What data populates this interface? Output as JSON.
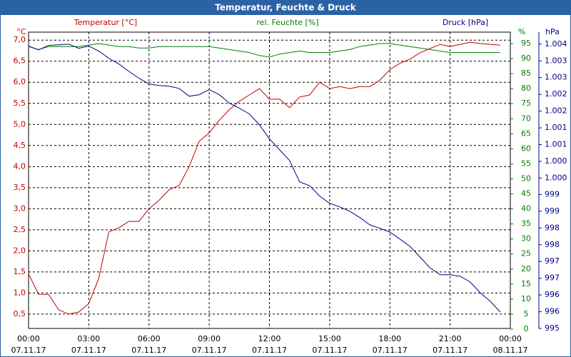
{
  "chart_data": {
    "type": "line",
    "title": "Temperatur, Feuchte & Druck",
    "ylabel": "°C",
    "y2label": "%",
    "y3label": "hPa",
    "x": [
      0,
      0.5,
      1,
      1.5,
      2,
      2.5,
      3,
      3.5,
      4,
      4.5,
      5,
      5.5,
      6,
      6.5,
      7,
      7.5,
      8,
      8.5,
      9,
      9.5,
      10,
      10.5,
      11,
      11.5,
      12,
      12.5,
      13,
      13.5,
      14,
      14.5,
      15,
      15.5,
      16,
      16.5,
      17,
      17.5,
      18,
      18.5,
      19,
      19.5,
      20,
      20.5,
      21,
      21.5,
      22,
      22.5,
      23,
      23.5
    ],
    "xlim": [
      0,
      24
    ],
    "xticks": [
      {
        "value": 0,
        "label": "00:00",
        "date": "07.11.17"
      },
      {
        "value": 3,
        "label": "03:00",
        "date": "07.11.17"
      },
      {
        "value": 6,
        "label": "06:00",
        "date": "07.11.17"
      },
      {
        "value": 9,
        "label": "09:00",
        "date": "07.11.17"
      },
      {
        "value": 12,
        "label": "12:00",
        "date": "07.11.17"
      },
      {
        "value": 15,
        "label": "15:00",
        "date": "07.11.17"
      },
      {
        "value": 18,
        "label": "18:00",
        "date": "07.11.17"
      },
      {
        "value": 21,
        "label": "21:00",
        "date": "07.11.17"
      },
      {
        "value": 24,
        "label": "00:00",
        "date": "08.11.17"
      }
    ],
    "ylim": [
      0.16,
      7.19
    ],
    "yticks": [
      {
        "value": 0.5,
        "label": "0,5"
      },
      {
        "value": 1.0,
        "label": "1,0"
      },
      {
        "value": 1.5,
        "label": "1,5"
      },
      {
        "value": 2.0,
        "label": "2,0"
      },
      {
        "value": 2.5,
        "label": "2,5"
      },
      {
        "value": 3.0,
        "label": "3,0"
      },
      {
        "value": 3.5,
        "label": "3,5"
      },
      {
        "value": 4.0,
        "label": "4,0"
      },
      {
        "value": 4.5,
        "label": "4,5"
      },
      {
        "value": 5.0,
        "label": "5,0"
      },
      {
        "value": 5.5,
        "label": "5,5"
      },
      {
        "value": 6.0,
        "label": "6,0"
      },
      {
        "value": 6.5,
        "label": "6,5"
      },
      {
        "value": 7.0,
        "label": "7,0"
      }
    ],
    "y2lim": [
      0.24,
      98.8
    ],
    "y2ticks": [
      0,
      5,
      10,
      15,
      20,
      25,
      30,
      35,
      40,
      45,
      50,
      55,
      60,
      65,
      70,
      75,
      80,
      85,
      90,
      95
    ],
    "y3lim": [
      995,
      1004.38
    ],
    "y3ticks": [
      {
        "value": 995,
        "label": "995"
      },
      {
        "value": 995.53,
        "label": "996"
      },
      {
        "value": 996.06,
        "label": "996"
      },
      {
        "value": 996.59,
        "label": "997"
      },
      {
        "value": 997.12,
        "label": "997"
      },
      {
        "value": 997.65,
        "label": "998"
      },
      {
        "value": 998.18,
        "label": "998"
      },
      {
        "value": 998.71,
        "label": "999"
      },
      {
        "value": 999.24,
        "label": "999"
      },
      {
        "value": 999.76,
        "label": "1.000"
      },
      {
        "value": 1000.29,
        "label": "1.000"
      },
      {
        "value": 1000.82,
        "label": "1.001"
      },
      {
        "value": 1001.35,
        "label": "1.001"
      },
      {
        "value": 1001.88,
        "label": "1.002"
      },
      {
        "value": 1002.41,
        "label": "1.002"
      },
      {
        "value": 1002.94,
        "label": "1.003"
      },
      {
        "value": 1003.47,
        "label": "1.003"
      },
      {
        "value": 1004,
        "label": "1.004"
      }
    ],
    "grid": true,
    "series": [
      {
        "name": "Temperatur [°C]",
        "color": "#c00000",
        "axis": "y",
        "values": [
          1.45,
          0.97,
          0.97,
          0.6,
          0.5,
          0.55,
          0.75,
          1.35,
          2.45,
          2.55,
          2.7,
          2.7,
          3.0,
          3.2,
          3.45,
          3.55,
          4.0,
          4.6,
          4.8,
          5.1,
          5.35,
          5.55,
          5.7,
          5.85,
          5.6,
          5.6,
          5.4,
          5.65,
          5.7,
          6.0,
          5.85,
          5.9,
          5.85,
          5.9,
          5.9,
          6.05,
          6.3,
          6.45,
          6.55,
          6.7,
          6.8,
          6.9,
          6.85,
          6.9,
          6.95,
          6.92,
          6.9,
          6.88
        ]
      },
      {
        "name": "rel. Feuchte [%]",
        "color": "#008000",
        "axis": "y2",
        "values": [
          94,
          93,
          94,
          94,
          94,
          94,
          94.5,
          95,
          94.5,
          94,
          94,
          93.5,
          93.5,
          94,
          94,
          94,
          94,
          94,
          94,
          93.5,
          93,
          92.5,
          92,
          91,
          90.5,
          91.5,
          92,
          92.5,
          92,
          92,
          92,
          92.5,
          93,
          94,
          94.5,
          95,
          95,
          94.5,
          94,
          93.5,
          93,
          92.5,
          92,
          92,
          92,
          92,
          92,
          92
        ]
      },
      {
        "name": "Druck [hPa]",
        "color": "#00008b",
        "axis": "y3",
        "values": [
          1003.94,
          1003.82,
          1003.96,
          1003.98,
          1004.0,
          1003.87,
          1003.94,
          1003.78,
          1003.55,
          1003.37,
          1003.14,
          1002.92,
          1002.74,
          1002.69,
          1002.67,
          1002.6,
          1002.35,
          1002.4,
          1002.56,
          1002.4,
          1002.13,
          1001.97,
          1001.79,
          1001.45,
          1001.0,
          1000.66,
          1000.32,
          999.64,
          999.52,
          999.19,
          998.96,
          998.85,
          998.71,
          998.51,
          998.28,
          998.17,
          998.05,
          997.83,
          997.6,
          997.26,
          996.92,
          996.7,
          996.7,
          996.65,
          996.47,
          996.13,
          995.86,
          995.52
        ]
      }
    ]
  }
}
